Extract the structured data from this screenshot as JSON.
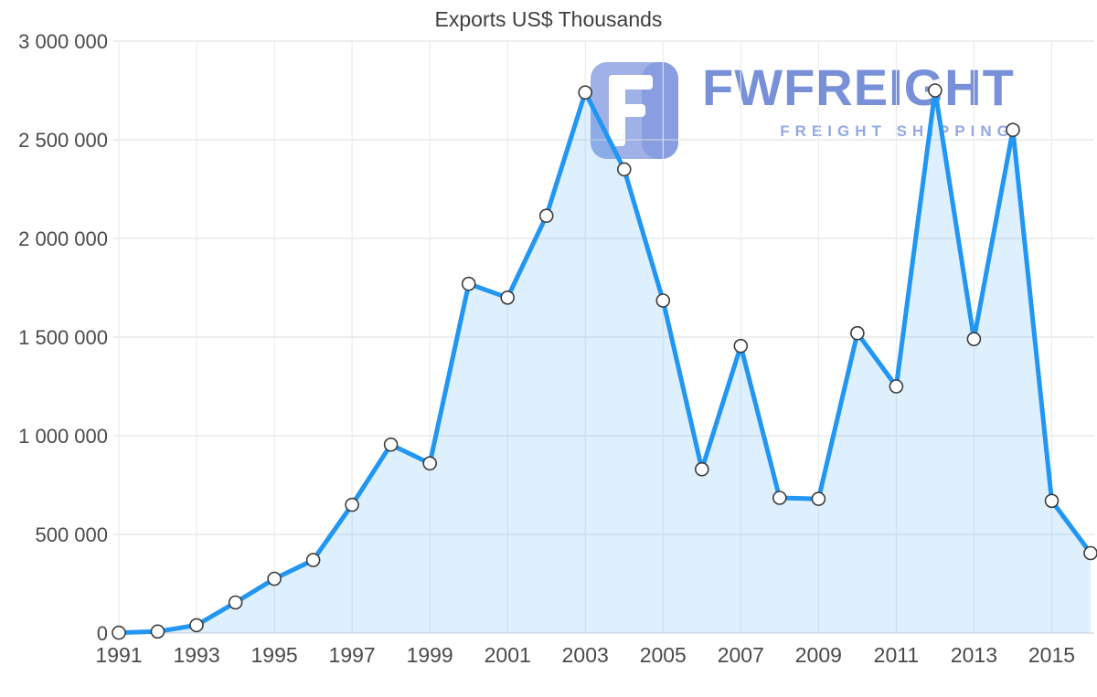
{
  "page": {
    "background": "#ffffff"
  },
  "chart_data": {
    "type": "area",
    "title": "Exports US$ Thousands",
    "xlabel": "",
    "ylabel": "",
    "x": [
      1991,
      1992,
      1993,
      1994,
      1995,
      1996,
      1997,
      1998,
      1999,
      2000,
      2001,
      2002,
      2003,
      2004,
      2005,
      2006,
      2007,
      2008,
      2009,
      2010,
      2011,
      2012,
      2013,
      2014,
      2015,
      2016
    ],
    "values": [
      2000,
      8000,
      40000,
      155000,
      275000,
      370000,
      650000,
      955000,
      860000,
      1770000,
      1700000,
      2115000,
      2740000,
      2350000,
      1685000,
      830000,
      1455000,
      685000,
      680000,
      1520000,
      1250000,
      2750000,
      1490000,
      2550000,
      670000,
      405000
    ],
    "xlim": [
      1991,
      2016
    ],
    "ylim": [
      0,
      3000000
    ],
    "x_tick_years": [
      1991,
      1993,
      1995,
      1997,
      1999,
      2001,
      2003,
      2005,
      2007,
      2009,
      2011,
      2013,
      2015
    ],
    "x_tick_labels": [
      "1991",
      "1993",
      "1995",
      "1997",
      "1999",
      "2001",
      "2003",
      "2005",
      "2007",
      "2009",
      "2011",
      "2013",
      "2015"
    ],
    "y_tick_values": [
      0,
      500000,
      1000000,
      1500000,
      2000000,
      2500000,
      3000000
    ],
    "y_tick_labels": [
      "0",
      "500 000",
      "1 000 000",
      "1 500 000",
      "2 000 000",
      "2 500 000",
      "3 000 000"
    ],
    "grid": true,
    "legend": "none",
    "line_color": "#2196f3",
    "area_fill": "rgba(33,150,243,0.15)",
    "marker_fill": "#ffffff",
    "marker_stroke": "#3c3c3c",
    "grid_color_h": "#dcdcdc",
    "grid_color_v": "#e9e9e9",
    "label_color": "#4a4a4a"
  },
  "watermark": {
    "brand": "FWFREIGHT",
    "tagline": "FREIGHT SHIPPING",
    "brand_color": "#6d87d5",
    "tagline_color": "#8ba2e2",
    "mark_color": "#97abe6"
  }
}
